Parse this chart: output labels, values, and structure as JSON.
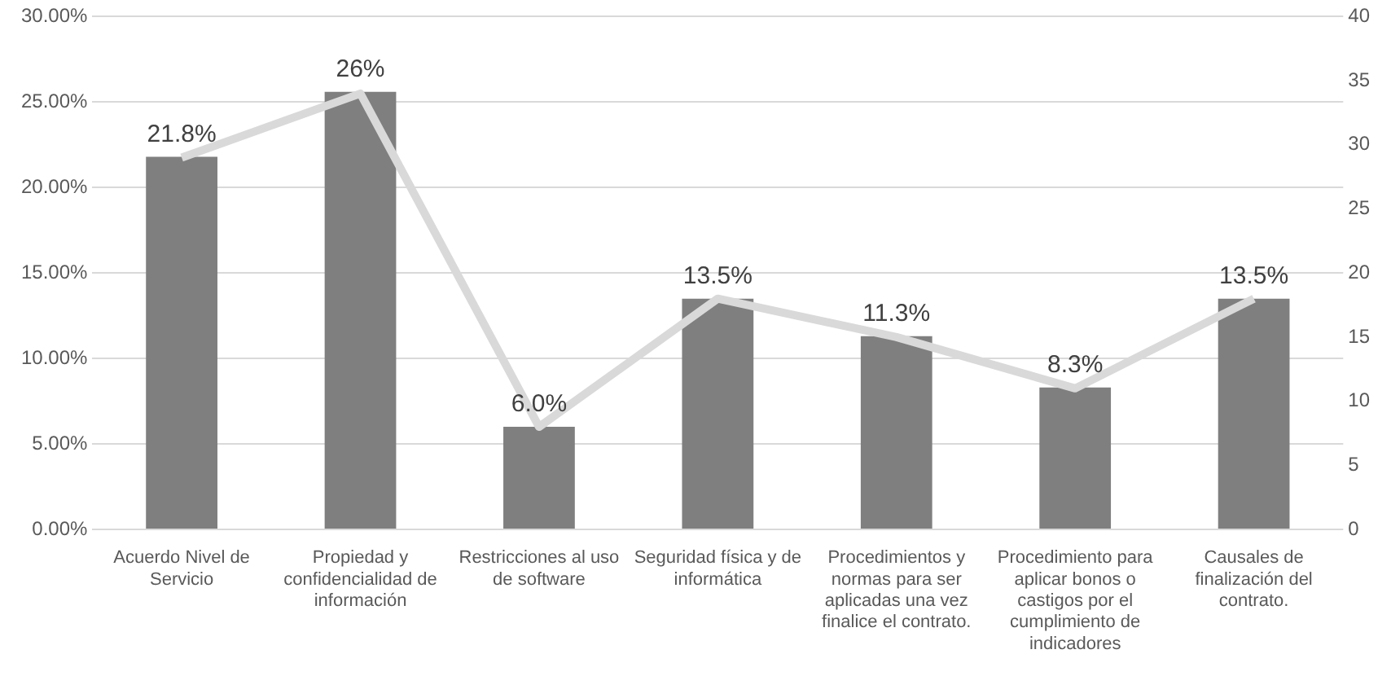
{
  "chart_data": {
    "type": "bar",
    "categories": [
      "Acuerdo Nivel de Servicio",
      "Propiedad y confidencialidad de información",
      "Restricciones al uso de software",
      "Seguridad física y de informática",
      "Procedimientos y normas para ser aplicadas una vez finalice el contrato.",
      "Procedimiento para aplicar bonos o castigos por el cumplimiento de indicadores",
      "Causales de finalización del contrato."
    ],
    "series": [
      {
        "color": "#7f7f7f",
        "values": [
          21.8,
          25.6,
          6.0,
          13.5,
          11.3,
          8.3,
          13.5
        ],
        "value_labels": [
          "21.8%",
          "26%",
          "6.0%",
          "13.5%",
          "11.3%",
          "8.3%",
          "13.5%"
        ]
      },
      {
        "type": "line",
        "axis": "y2",
        "color": "#d9d9d9",
        "values": [
          29,
          34,
          8,
          18,
          15,
          11,
          18
        ]
      }
    ],
    "ylim": [
      0,
      30
    ],
    "yticks": [
      {
        "value": 0,
        "label": "0.00%"
      },
      {
        "value": 5,
        "label": "5.00%"
      },
      {
        "value": 10,
        "label": "10.00%"
      },
      {
        "value": 15,
        "label": "15.00%"
      },
      {
        "value": 20,
        "label": "20.00%"
      },
      {
        "value": 25,
        "label": "25.00%"
      },
      {
        "value": 30,
        "label": "30.00%"
      }
    ],
    "y2lim": [
      0,
      40
    ],
    "y2ticks": [
      0,
      5,
      10,
      15,
      20,
      25,
      30,
      35,
      40
    ],
    "grid": "y",
    "legend": false,
    "marker": "none",
    "line_style": "solid"
  }
}
